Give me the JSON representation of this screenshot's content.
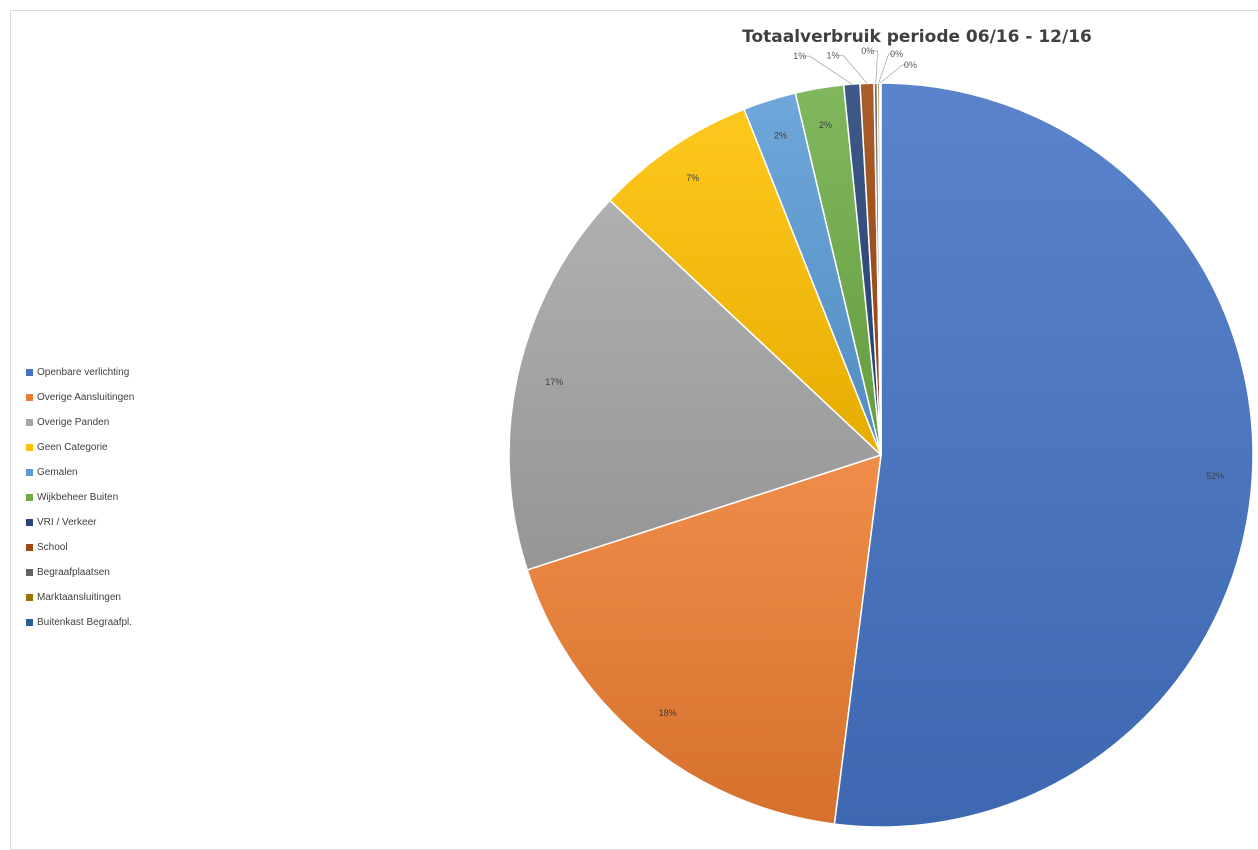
{
  "chart_data": {
    "type": "pie",
    "title": "Totaalverbruik periode 06/16 - 12/16",
    "legend_position": "left",
    "slices": [
      {
        "label": "Openbare verlichting",
        "value": 52,
        "display": "52%",
        "color": "#4472c4"
      },
      {
        "label": "Overige Aansluitingen",
        "value": 18,
        "display": "18%",
        "color": "#ed7d31"
      },
      {
        "label": "Overige Panden",
        "value": 17,
        "display": "17%",
        "color": "#a5a5a5"
      },
      {
        "label": "Geen Categorie",
        "value": 7,
        "display": "7%",
        "color": "#ffc000"
      },
      {
        "label": "Gemalen",
        "value": 2.3,
        "display": "2%",
        "color": "#5b9bd5"
      },
      {
        "label": "Wijkbeheer Buiten",
        "value": 2.1,
        "display": "2%",
        "color": "#70ad47"
      },
      {
        "label": "VRI / Verkeer",
        "value": 0.7,
        "display": "1%",
        "color": "#264478"
      },
      {
        "label": "School",
        "value": 0.6,
        "display": "1%",
        "color": "#9e480e"
      },
      {
        "label": "Begraafplaatsen",
        "value": 0.15,
        "display": "0%",
        "color": "#636363"
      },
      {
        "label": "Marktaansluitingen",
        "value": 0.1,
        "display": "0%",
        "color": "#997300"
      },
      {
        "label": "Buitenkast Begraafpl.",
        "value": 0.05,
        "display": "0%",
        "color": "#255e91"
      }
    ]
  }
}
